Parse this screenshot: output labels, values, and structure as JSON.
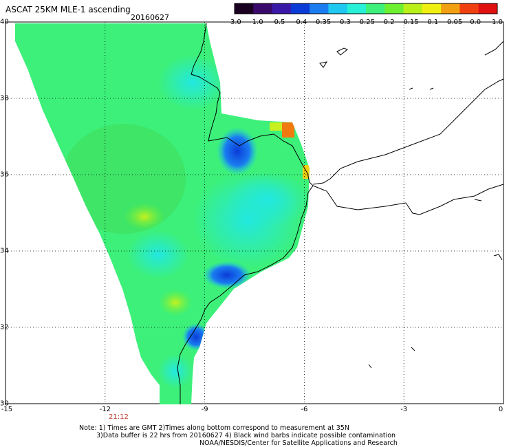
{
  "header": {
    "title": "ASCAT 25KM MLE-1 ascending",
    "date": "20160627"
  },
  "colorbar": {
    "labels": [
      "-3.0",
      "-1.0",
      "-0.5",
      "-0.4",
      "-0.35",
      "-0.3",
      "-0.25",
      "-0.2",
      "-0.15",
      "-0.1",
      "-0.05",
      "0.0",
      "1.0"
    ],
    "colors": [
      "#1a0020",
      "#3a0a6b",
      "#3a18a8",
      "#0b3cd8",
      "#1a7cf0",
      "#1ec8f0",
      "#26f0d8",
      "#3cf07a",
      "#6cf030",
      "#b8f018",
      "#f0f010",
      "#f0a010",
      "#f04010",
      "#e01010"
    ]
  },
  "map": {
    "lat_labels": [
      "40",
      "38",
      "36",
      "34",
      "32",
      "30"
    ],
    "lon_labels": [
      "-15",
      "-12",
      "-9",
      "-6",
      "-3",
      "0"
    ],
    "pass_time": "21:12"
  },
  "footer": {
    "line1": "Note: 1) Times are GMT 2)Times along bottom correspond to measurement at 35N",
    "line2": "3)Data buffer is 22 hrs from 20160627 4) Black wind barbs indicate possible contamination",
    "line3": "NOAA/NESDIS/Center for Satellite Applications and Research"
  }
}
